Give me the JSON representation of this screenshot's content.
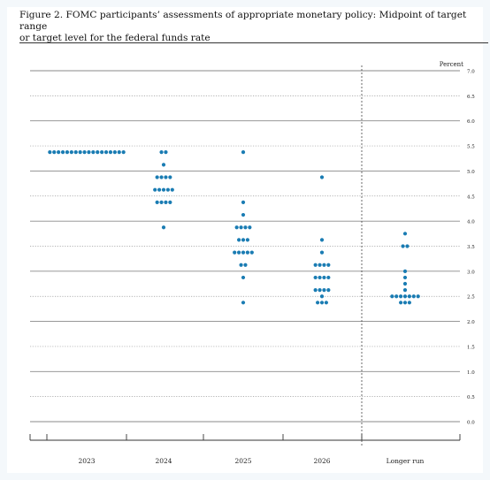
{
  "title_line1": "Figure 2.  FOMC participants’ assessments of appropriate monetary policy:  Midpoint of target range",
  "title_line2": "or target level for the federal funds rate",
  "chart_data": {
    "type": "scatter",
    "title": "FOMC participants’ assessments of appropriate monetary policy:  Midpoint of target range or target level for the federal funds rate",
    "unit_label": "Percent",
    "ylim": [
      0,
      7
    ],
    "y_ticks": [
      0.0,
      0.5,
      1.0,
      1.5,
      2.0,
      2.5,
      3.0,
      3.5,
      4.0,
      4.5,
      5.0,
      5.5,
      6.0,
      6.5,
      7.0
    ],
    "y_tick_labels": [
      "0.0",
      "0.5",
      "1.0",
      "1.5",
      "2.0",
      "2.5",
      "3.0",
      "3.5",
      "4.0",
      "4.5",
      "5.0",
      "5.5",
      "6.0",
      "6.5",
      "7.0"
    ],
    "categories": [
      "2023",
      "2024",
      "2025",
      "2026",
      "Longer run"
    ],
    "dot_color": "#1a7cb3",
    "dots": [
      {
        "category": "2023",
        "counts": [
          {
            "y": 5.375,
            "n": 18
          }
        ]
      },
      {
        "category": "2024",
        "counts": [
          {
            "y": 5.375,
            "n": 2
          },
          {
            "y": 5.125,
            "n": 1
          },
          {
            "y": 4.875,
            "n": 4
          },
          {
            "y": 4.625,
            "n": 5
          },
          {
            "y": 4.375,
            "n": 4
          },
          {
            "y": 3.875,
            "n": 1
          }
        ]
      },
      {
        "category": "2025",
        "counts": [
          {
            "y": 5.375,
            "n": 1
          },
          {
            "y": 4.375,
            "n": 1
          },
          {
            "y": 4.125,
            "n": 1
          },
          {
            "y": 3.875,
            "n": 4
          },
          {
            "y": 3.625,
            "n": 3
          },
          {
            "y": 3.375,
            "n": 5
          },
          {
            "y": 3.125,
            "n": 2
          },
          {
            "y": 2.875,
            "n": 1
          },
          {
            "y": 2.375,
            "n": 1
          }
        ]
      },
      {
        "category": "2026",
        "counts": [
          {
            "y": 4.875,
            "n": 1
          },
          {
            "y": 3.625,
            "n": 1
          },
          {
            "y": 3.375,
            "n": 1
          },
          {
            "y": 3.125,
            "n": 4
          },
          {
            "y": 2.875,
            "n": 4
          },
          {
            "y": 2.625,
            "n": 4
          },
          {
            "y": 2.5,
            "n": 1
          },
          {
            "y": 2.375,
            "n": 3
          }
        ]
      },
      {
        "category": "Longer run",
        "counts": [
          {
            "y": 3.75,
            "n": 1
          },
          {
            "y": 3.5,
            "n": 2
          },
          {
            "y": 3.0,
            "n": 1
          },
          {
            "y": 2.875,
            "n": 1
          },
          {
            "y": 2.75,
            "n": 1
          },
          {
            "y": 2.625,
            "n": 1
          },
          {
            "y": 2.5,
            "n": 7
          },
          {
            "y": 2.375,
            "n": 3
          }
        ]
      }
    ],
    "grid": "dotted at 0.5-percent intervals, solid at whole percents",
    "separator_before": "Longer run"
  }
}
